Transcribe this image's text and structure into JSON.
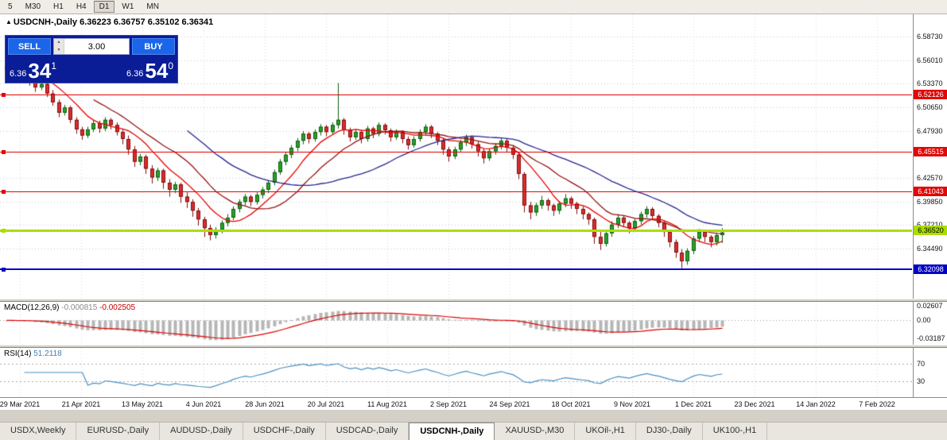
{
  "toolbar": {
    "timeframes": [
      {
        "label": "5",
        "active": false
      },
      {
        "label": "M30",
        "active": false
      },
      {
        "label": "H1",
        "active": false
      },
      {
        "label": "H4",
        "active": false
      },
      {
        "label": "D1",
        "active": true
      },
      {
        "label": "W1",
        "active": false
      },
      {
        "label": "MN",
        "active": false
      }
    ]
  },
  "chart": {
    "arrow": "▲",
    "title": "USDCNH-,Daily",
    "ohlc": "6.36223 6.36757 6.35102 6.36341"
  },
  "trade_panel": {
    "sell_label": "SELL",
    "buy_label": "BUY",
    "lot": "3.00",
    "sell_price_prefix": "6.36",
    "sell_price_big": "34",
    "sell_price_sup": "1",
    "buy_price_prefix": "6.36",
    "buy_price_big": "54",
    "buy_price_sup": "0"
  },
  "chart_data": {
    "type": "candlestick",
    "symbol": "USDCNH-",
    "timeframe": "Daily",
    "ohlc_current": {
      "open": 6.36223,
      "high": 6.36757,
      "low": 6.35102,
      "close": 6.36341
    },
    "y_range": [
      6.3,
      6.6
    ],
    "y_ticks": [
      "6.58730",
      "6.56010",
      "6.53370",
      "6.50650",
      "6.47930",
      "6.42570",
      "6.39850",
      "6.37210",
      "6.34490"
    ],
    "y_tick_values": [
      6.5873,
      6.5601,
      6.5337,
      6.5065,
      6.4793,
      6.4257,
      6.3985,
      6.3721,
      6.3449
    ],
    "hlines": [
      {
        "value": 6.52126,
        "label": "6.52126",
        "color": "#e00808",
        "text": "#ffffff",
        "thickness": 1
      },
      {
        "value": 6.45515,
        "label": "6.45515",
        "color": "#e00808",
        "text": "#ffffff",
        "thickness": 1
      },
      {
        "value": 6.41043,
        "label": "6.41043",
        "color": "#e00808",
        "text": "#ffffff",
        "thickness": 1
      },
      {
        "value": 6.3652,
        "label": "6.36520",
        "color": "#aade00",
        "text": "#000000",
        "thickness": 3
      },
      {
        "value": 6.32098,
        "label": "6.32098",
        "color": "#0000c4",
        "text": "#ffffff",
        "thickness": 2
      }
    ],
    "x_labels": [
      "29 Mar 2021",
      "21 Apr 2021",
      "13 May 2021",
      "4 Jun 2021",
      "28 Jun 2021",
      "20 Jul 2021",
      "11 Aug 2021",
      "2 Sep 2021",
      "24 Sep 2021",
      "18 Oct 2021",
      "9 Nov 2021",
      "1 Dec 2021",
      "23 Dec 2021",
      "14 Jan 2022",
      "7 Feb 2022"
    ],
    "moving_averages": [
      {
        "period": 8,
        "color": "#e80000"
      },
      {
        "period": 16,
        "color": "#951111"
      },
      {
        "period": 32,
        "color": "#24248f"
      }
    ],
    "macd": {
      "label": "MACD(12,26,9)",
      "value_main": "-0.000815",
      "value_signal": "-0.002505",
      "fast": 12,
      "slow": 26,
      "signal": 9,
      "range": [
        -0.04,
        0.03
      ],
      "ticks": [
        {
          "label": "0.02607",
          "value": 0.02607
        },
        {
          "label": "0.00",
          "value": 0
        },
        {
          "label": "-0.03187",
          "value": -0.03187
        }
      ]
    },
    "rsi": {
      "label": "RSI(14)",
      "value": "51.2118",
      "period": 14,
      "levels": [
        70,
        30
      ],
      "ticks": [
        {
          "label": "70",
          "value": 70
        },
        {
          "label": "30",
          "value": 30
        }
      ]
    },
    "candles": [
      [
        6.553,
        6.558,
        6.545,
        6.549
      ],
      [
        6.549,
        6.554,
        6.541,
        6.545
      ],
      [
        6.545,
        6.556,
        6.543,
        6.551
      ],
      [
        6.551,
        6.553,
        6.537,
        6.541
      ],
      [
        6.541,
        6.545,
        6.531,
        6.536
      ],
      [
        6.536,
        6.54,
        6.524,
        6.529
      ],
      [
        6.529,
        6.537,
        6.526,
        6.533
      ],
      [
        6.533,
        6.535,
        6.518,
        6.522
      ],
      [
        6.522,
        6.526,
        6.508,
        6.512
      ],
      [
        6.512,
        6.515,
        6.495,
        6.5
      ],
      [
        6.5,
        6.509,
        6.497,
        6.506
      ],
      [
        6.506,
        6.508,
        6.488,
        6.492
      ],
      [
        6.492,
        6.495,
        6.476,
        6.481
      ],
      [
        6.481,
        6.484,
        6.469,
        6.474
      ],
      [
        6.474,
        6.484,
        6.471,
        6.481
      ],
      [
        6.481,
        6.491,
        6.478,
        6.488
      ],
      [
        6.488,
        6.491,
        6.477,
        6.482
      ],
      [
        6.482,
        6.495,
        6.479,
        6.492
      ],
      [
        6.492,
        6.494,
        6.481,
        6.486
      ],
      [
        6.486,
        6.489,
        6.474,
        6.478
      ],
      [
        6.478,
        6.481,
        6.464,
        6.47
      ],
      [
        6.47,
        6.474,
        6.452,
        6.458
      ],
      [
        6.458,
        6.462,
        6.438,
        6.444
      ],
      [
        6.444,
        6.453,
        6.44,
        6.45
      ],
      [
        6.45,
        6.452,
        6.43,
        6.436
      ],
      [
        6.436,
        6.44,
        6.419,
        6.426
      ],
      [
        6.426,
        6.437,
        6.422,
        6.434
      ],
      [
        6.434,
        6.436,
        6.413,
        6.42
      ],
      [
        6.42,
        6.424,
        6.404,
        6.412
      ],
      [
        6.412,
        6.421,
        6.408,
        6.418
      ],
      [
        6.418,
        6.42,
        6.397,
        6.404
      ],
      [
        6.404,
        6.409,
        6.391,
        6.398
      ],
      [
        6.398,
        6.401,
        6.381,
        6.388
      ],
      [
        6.388,
        6.391,
        6.371,
        6.378
      ],
      [
        6.378,
        6.381,
        6.358,
        6.368
      ],
      [
        6.368,
        6.372,
        6.354,
        6.36
      ],
      [
        6.36,
        6.369,
        6.356,
        6.366
      ],
      [
        6.366,
        6.377,
        6.362,
        6.374
      ],
      [
        6.374,
        6.384,
        6.37,
        6.38
      ],
      [
        6.38,
        6.393,
        6.377,
        6.39
      ],
      [
        6.39,
        6.401,
        6.386,
        6.398
      ],
      [
        6.398,
        6.407,
        6.394,
        6.404
      ],
      [
        6.404,
        6.406,
        6.393,
        6.398
      ],
      [
        6.398,
        6.409,
        6.395,
        6.406
      ],
      [
        6.406,
        6.415,
        6.402,
        6.412
      ],
      [
        6.412,
        6.423,
        6.408,
        6.42
      ],
      [
        6.42,
        6.435,
        6.417,
        6.432
      ],
      [
        6.432,
        6.447,
        6.429,
        6.444
      ],
      [
        6.444,
        6.455,
        6.44,
        6.452
      ],
      [
        6.452,
        6.463,
        6.448,
        6.46
      ],
      [
        6.46,
        6.471,
        6.456,
        6.468
      ],
      [
        6.468,
        6.479,
        6.464,
        6.476
      ],
      [
        6.476,
        6.478,
        6.465,
        6.47
      ],
      [
        6.47,
        6.481,
        6.467,
        6.478
      ],
      [
        6.478,
        6.487,
        6.474,
        6.484
      ],
      [
        6.484,
        6.486,
        6.473,
        6.478
      ],
      [
        6.478,
        6.489,
        6.475,
        6.486
      ],
      [
        6.486,
        6.534,
        6.482,
        6.492
      ],
      [
        6.492,
        6.494,
        6.475,
        6.48
      ],
      [
        6.48,
        6.483,
        6.467,
        6.472
      ],
      [
        6.472,
        6.481,
        6.469,
        6.478
      ],
      [
        6.478,
        6.48,
        6.465,
        6.47
      ],
      [
        6.47,
        6.485,
        6.467,
        6.482
      ],
      [
        6.482,
        6.484,
        6.471,
        6.476
      ],
      [
        6.476,
        6.489,
        6.473,
        6.486
      ],
      [
        6.486,
        6.488,
        6.475,
        6.48
      ],
      [
        6.48,
        6.482,
        6.467,
        6.472
      ],
      [
        6.472,
        6.481,
        6.469,
        6.478
      ],
      [
        6.478,
        6.48,
        6.465,
        6.47
      ],
      [
        6.47,
        6.473,
        6.458,
        6.463
      ],
      [
        6.463,
        6.473,
        6.46,
        6.47
      ],
      [
        6.47,
        6.481,
        6.467,
        6.478
      ],
      [
        6.478,
        6.487,
        6.474,
        6.484
      ],
      [
        6.484,
        6.486,
        6.471,
        6.476
      ],
      [
        6.476,
        6.478,
        6.463,
        6.468
      ],
      [
        6.468,
        6.471,
        6.452,
        6.458
      ],
      [
        6.458,
        6.461,
        6.444,
        6.45
      ],
      [
        6.45,
        6.461,
        6.447,
        6.458
      ],
      [
        6.458,
        6.469,
        6.455,
        6.466
      ],
      [
        6.466,
        6.475,
        6.462,
        6.472
      ],
      [
        6.472,
        6.474,
        6.459,
        6.464
      ],
      [
        6.464,
        6.467,
        6.45,
        6.456
      ],
      [
        6.456,
        6.459,
        6.442,
        6.448
      ],
      [
        6.448,
        6.459,
        6.445,
        6.456
      ],
      [
        6.456,
        6.465,
        6.452,
        6.462
      ],
      [
        6.462,
        6.471,
        6.458,
        6.468
      ],
      [
        6.468,
        6.47,
        6.455,
        6.46
      ],
      [
        6.46,
        6.463,
        6.447,
        6.452
      ],
      [
        6.452,
        6.455,
        6.424,
        6.43
      ],
      [
        6.43,
        6.432,
        6.386,
        6.394
      ],
      [
        6.394,
        6.398,
        6.378,
        6.386
      ],
      [
        6.386,
        6.397,
        6.382,
        6.394
      ],
      [
        6.394,
        6.405,
        6.39,
        6.4
      ],
      [
        6.4,
        6.402,
        6.388,
        6.394
      ],
      [
        6.394,
        6.396,
        6.382,
        6.388
      ],
      [
        6.388,
        6.399,
        6.384,
        6.396
      ],
      [
        6.396,
        6.407,
        6.392,
        6.402
      ],
      [
        6.402,
        6.404,
        6.39,
        6.396
      ],
      [
        6.396,
        6.398,
        6.384,
        6.39
      ],
      [
        6.39,
        6.393,
        6.378,
        6.384
      ],
      [
        6.384,
        6.386,
        6.372,
        6.378
      ],
      [
        6.378,
        6.38,
        6.35,
        6.358
      ],
      [
        6.358,
        6.364,
        6.343,
        6.35
      ],
      [
        6.35,
        6.366,
        6.347,
        6.362
      ],
      [
        6.362,
        6.376,
        6.358,
        6.372
      ],
      [
        6.372,
        6.384,
        6.368,
        6.38
      ],
      [
        6.38,
        6.382,
        6.369,
        6.374
      ],
      [
        6.374,
        6.376,
        6.362,
        6.368
      ],
      [
        6.368,
        6.379,
        6.364,
        6.376
      ],
      [
        6.376,
        6.387,
        6.372,
        6.384
      ],
      [
        6.384,
        6.393,
        6.38,
        6.39
      ],
      [
        6.39,
        6.392,
        6.377,
        6.382
      ],
      [
        6.382,
        6.384,
        6.369,
        6.374
      ],
      [
        6.374,
        6.376,
        6.358,
        6.364
      ],
      [
        6.364,
        6.366,
        6.346,
        6.352
      ],
      [
        6.352,
        6.355,
        6.334,
        6.34
      ],
      [
        6.34,
        6.344,
        6.322,
        6.33
      ],
      [
        6.33,
        6.345,
        6.326,
        6.342
      ],
      [
        6.342,
        6.359,
        6.338,
        6.356
      ],
      [
        6.356,
        6.367,
        6.352,
        6.364
      ],
      [
        6.364,
        6.366,
        6.352,
        6.358
      ],
      [
        6.358,
        6.36,
        6.346,
        6.352
      ],
      [
        6.352,
        6.363,
        6.348,
        6.36
      ],
      [
        6.36,
        6.368,
        6.351,
        6.363
      ]
    ]
  },
  "tabs": [
    {
      "label": "USDX,Weekly",
      "active": false
    },
    {
      "label": "EURUSD-,Daily",
      "active": false
    },
    {
      "label": "AUDUSD-,Daily",
      "active": false
    },
    {
      "label": "USDCHF-,Daily",
      "active": false
    },
    {
      "label": "USDCAD-,Daily",
      "active": false
    },
    {
      "label": "USDCNH-,Daily",
      "active": true
    },
    {
      "label": "XAUUSD-,M30",
      "active": false
    },
    {
      "label": "UKOil-,H1",
      "active": false
    },
    {
      "label": "DJ30-,Daily",
      "active": false
    },
    {
      "label": "UK100-,H1",
      "active": false
    }
  ]
}
